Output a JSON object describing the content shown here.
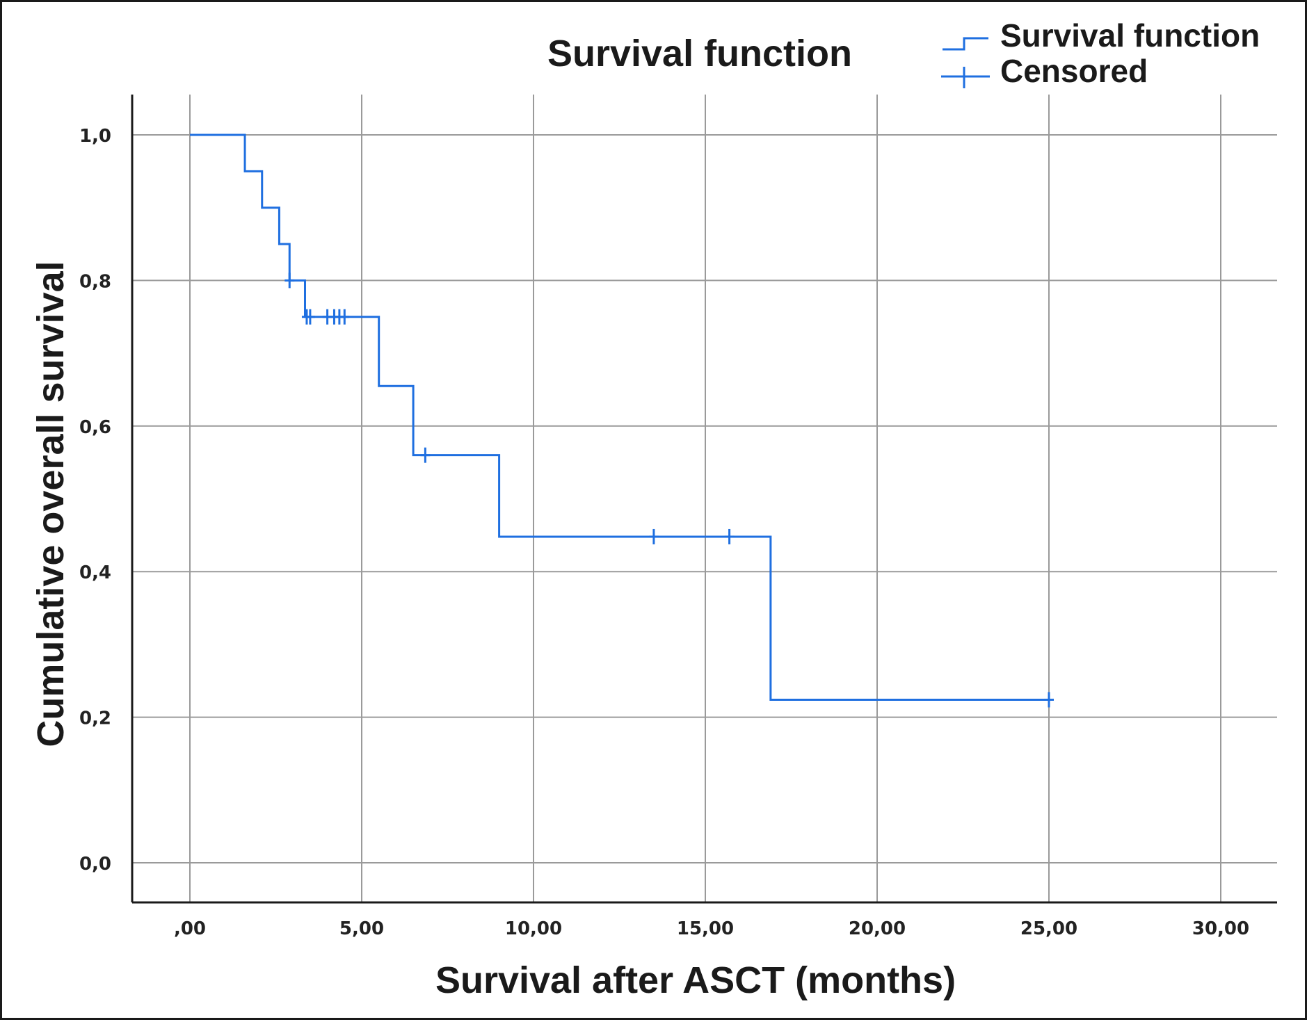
{
  "chart_data": {
    "type": "line",
    "title": "Survival function",
    "xlabel": "Survival after ASCT (months)",
    "ylabel": "Cumulative overall survival",
    "xlim": [
      -1.7,
      31.7
    ],
    "ylim": [
      -0.055,
      1.055
    ],
    "x_ticks": [
      0,
      5,
      10,
      15,
      20,
      25,
      30
    ],
    "x_tick_labels": [
      ",00",
      "5,00",
      "10,00",
      "15,00",
      "20,00",
      "25,00",
      "30,00"
    ],
    "y_ticks": [
      0,
      0.2,
      0.4,
      0.6,
      0.8,
      1.0
    ],
    "y_tick_labels": [
      "0,0",
      "0,2",
      "0,4",
      "0,6",
      "0,8",
      "1,0"
    ],
    "grid": true,
    "legend": {
      "position": "top-right",
      "entries": [
        "Survival function",
        "Censored"
      ]
    },
    "colors": {
      "curve": "#1f6fe0",
      "grid": "#9a9a9a",
      "axis": "#1a1a1a"
    },
    "series": [
      {
        "name": "Survival function",
        "kind": "step",
        "x": [
          0,
          1.6,
          2.1,
          2.6,
          2.9,
          3.35,
          5.5,
          6.5,
          9.0,
          16.9,
          25.0
        ],
        "y": [
          1.0,
          0.95,
          0.9,
          0.85,
          0.8,
          0.75,
          0.655,
          0.56,
          0.448,
          0.224,
          0.224
        ]
      },
      {
        "name": "Censored",
        "kind": "marker",
        "x": [
          2.9,
          3.4,
          3.5,
          4.0,
          4.2,
          4.35,
          4.5,
          6.85,
          13.5,
          15.7,
          25.0
        ],
        "y": [
          0.8,
          0.75,
          0.75,
          0.75,
          0.75,
          0.75,
          0.75,
          0.56,
          0.448,
          0.448,
          0.224
        ]
      }
    ]
  }
}
